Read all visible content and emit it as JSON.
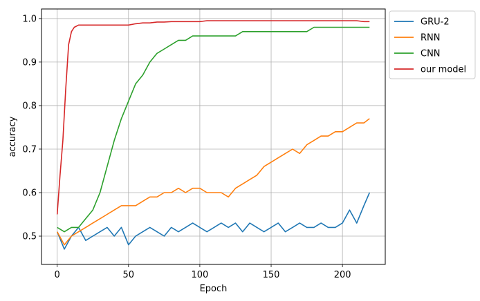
{
  "chart_data": {
    "type": "line",
    "title": "",
    "xlabel": "Epoch",
    "ylabel": "accuracy",
    "xlim": [
      -11,
      230
    ],
    "ylim": [
      0.435,
      1.022
    ],
    "xticks": [
      0,
      50,
      100,
      150,
      200
    ],
    "yticks": [
      0.5,
      0.6,
      0.7,
      0.8,
      0.9,
      1.0
    ],
    "grid": true,
    "legend": "outside-top-right",
    "series": [
      {
        "name": "GRU-2",
        "color": "#1f77b4",
        "x": [
          0,
          5,
          10,
          15,
          20,
          25,
          30,
          35,
          40,
          45,
          50,
          55,
          60,
          65,
          70,
          75,
          80,
          85,
          90,
          95,
          100,
          105,
          110,
          115,
          120,
          125,
          130,
          135,
          140,
          145,
          150,
          155,
          160,
          165,
          170,
          175,
          180,
          185,
          190,
          195,
          200,
          205,
          210,
          215,
          219
        ],
        "y": [
          0.51,
          0.47,
          0.5,
          0.52,
          0.49,
          0.5,
          0.51,
          0.52,
          0.5,
          0.52,
          0.48,
          0.5,
          0.51,
          0.52,
          0.51,
          0.5,
          0.52,
          0.51,
          0.52,
          0.53,
          0.52,
          0.51,
          0.52,
          0.53,
          0.52,
          0.53,
          0.51,
          0.53,
          0.52,
          0.51,
          0.52,
          0.53,
          0.51,
          0.52,
          0.53,
          0.52,
          0.52,
          0.53,
          0.52,
          0.52,
          0.53,
          0.56,
          0.53,
          0.57,
          0.6
        ]
      },
      {
        "name": "RNN",
        "color": "#ff7f0e",
        "x": [
          0,
          5,
          10,
          15,
          20,
          25,
          30,
          35,
          40,
          45,
          50,
          55,
          60,
          65,
          70,
          75,
          80,
          85,
          90,
          95,
          100,
          105,
          110,
          115,
          120,
          125,
          130,
          135,
          140,
          145,
          150,
          155,
          160,
          165,
          170,
          175,
          180,
          185,
          190,
          195,
          200,
          205,
          210,
          215,
          219
        ],
        "y": [
          0.51,
          0.48,
          0.5,
          0.51,
          0.52,
          0.53,
          0.54,
          0.55,
          0.56,
          0.57,
          0.57,
          0.57,
          0.58,
          0.59,
          0.59,
          0.6,
          0.6,
          0.61,
          0.6,
          0.61,
          0.61,
          0.6,
          0.6,
          0.6,
          0.59,
          0.61,
          0.62,
          0.63,
          0.64,
          0.66,
          0.67,
          0.68,
          0.69,
          0.7,
          0.69,
          0.71,
          0.72,
          0.73,
          0.73,
          0.74,
          0.74,
          0.75,
          0.76,
          0.76,
          0.77
        ]
      },
      {
        "name": "CNN",
        "color": "#2ca02c",
        "x": [
          0,
          5,
          10,
          15,
          20,
          25,
          30,
          35,
          40,
          45,
          50,
          55,
          60,
          65,
          70,
          75,
          80,
          85,
          90,
          95,
          100,
          105,
          110,
          115,
          120,
          125,
          130,
          135,
          140,
          145,
          150,
          155,
          160,
          165,
          170,
          175,
          180,
          185,
          190,
          195,
          200,
          205,
          210,
          215,
          219
        ],
        "y": [
          0.52,
          0.51,
          0.52,
          0.52,
          0.54,
          0.56,
          0.6,
          0.66,
          0.72,
          0.77,
          0.81,
          0.85,
          0.87,
          0.9,
          0.92,
          0.93,
          0.94,
          0.95,
          0.95,
          0.96,
          0.96,
          0.96,
          0.96,
          0.96,
          0.96,
          0.96,
          0.97,
          0.97,
          0.97,
          0.97,
          0.97,
          0.97,
          0.97,
          0.97,
          0.97,
          0.97,
          0.98,
          0.98,
          0.98,
          0.98,
          0.98,
          0.98,
          0.98,
          0.98,
          0.98
        ]
      },
      {
        "name": "our model",
        "color": "#d62728",
        "x": [
          0,
          2,
          4,
          6,
          8,
          10,
          12,
          15,
          20,
          25,
          30,
          35,
          40,
          45,
          50,
          55,
          60,
          65,
          70,
          75,
          80,
          85,
          90,
          95,
          100,
          105,
          110,
          115,
          120,
          125,
          130,
          135,
          140,
          145,
          150,
          155,
          160,
          165,
          170,
          175,
          180,
          185,
          190,
          195,
          200,
          205,
          210,
          215,
          219
        ],
        "y": [
          0.55,
          0.64,
          0.72,
          0.84,
          0.94,
          0.97,
          0.98,
          0.985,
          0.985,
          0.985,
          0.985,
          0.985,
          0.985,
          0.985,
          0.985,
          0.988,
          0.99,
          0.99,
          0.992,
          0.992,
          0.993,
          0.993,
          0.993,
          0.993,
          0.993,
          0.995,
          0.995,
          0.995,
          0.995,
          0.995,
          0.995,
          0.995,
          0.995,
          0.995,
          0.995,
          0.995,
          0.995,
          0.995,
          0.995,
          0.995,
          0.995,
          0.995,
          0.995,
          0.995,
          0.995,
          0.995,
          0.995,
          0.993,
          0.993
        ]
      }
    ]
  }
}
